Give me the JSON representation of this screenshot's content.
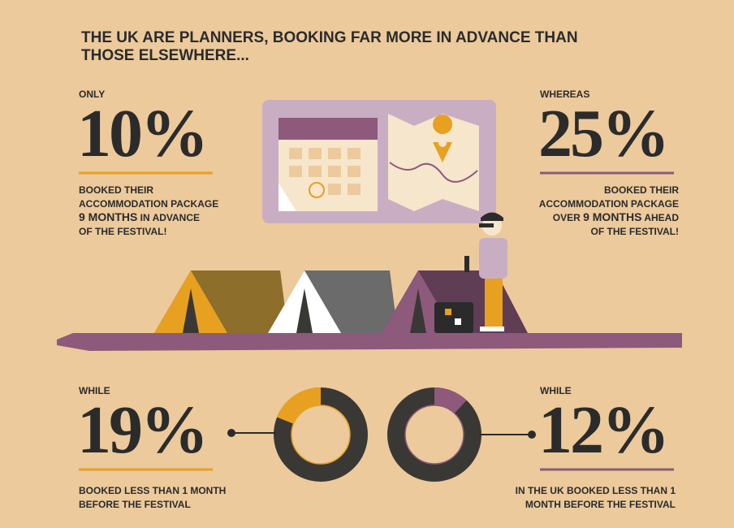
{
  "title_lines": [
    "THE UK ARE PLANNERS, BOOKING FAR MORE IN ADVANCE THAN",
    "THOSE ELSEWHERE..."
  ],
  "stats": [
    {
      "intro": "ONLY",
      "label": "10%",
      "lines": [
        [
          "BOOKED THEIR"
        ],
        [
          "ACCOMMODATION PACKAGE"
        ],
        [
          "9 MONTHS",
          " IN ADVANCE"
        ],
        [
          "OF THE FESTIVAL!"
        ]
      ]
    },
    {
      "intro": "WHEREAS",
      "label": "25%",
      "lines": [
        [
          "BOOKED THEIR"
        ],
        [
          "ACCOMMODATION PACKAGE"
        ],
        [
          "OVER ",
          "9 MONTHS",
          " AHEAD"
        ],
        [
          "OF THE FESTIVAL!"
        ]
      ]
    },
    {
      "intro": "WHILE",
      "value": 19,
      "label": "19%",
      "lines": [
        [
          "BOOKED LESS THAN 1 MONTH"
        ],
        [
          "BEFORE THE FESTIVAL"
        ]
      ]
    },
    {
      "intro": "WHILE",
      "value": 12,
      "label": "12%",
      "lines": [
        [
          "IN THE UK BOOKED LESS THAN 1"
        ],
        [
          "MONTH BEFORE THE FESTIVAL"
        ]
      ]
    }
  ]
}
